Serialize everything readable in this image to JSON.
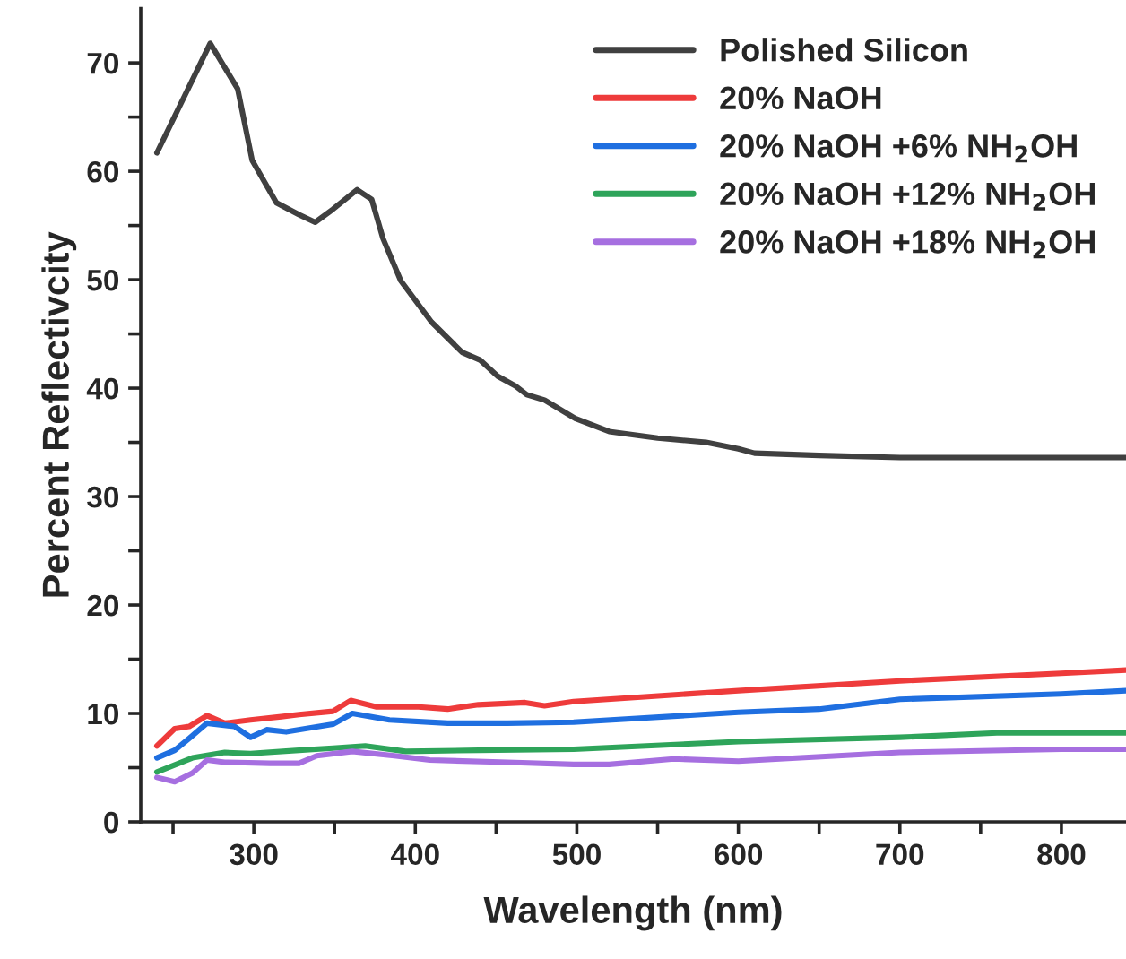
{
  "chart_data": {
    "type": "line",
    "xlabel": "Wavelength (nm)",
    "ylabel": "Percent Reflectivcity",
    "xlim": [
      230,
      840
    ],
    "ylim": [
      0,
      75
    ],
    "xticks": [
      {
        "value": 250,
        "label": null
      },
      300,
      {
        "value": 350,
        "label": null
      },
      400,
      {
        "value": 450,
        "label": null
      },
      500,
      {
        "value": 550,
        "label": null
      },
      600,
      {
        "value": 650,
        "label": null
      },
      700,
      {
        "value": 750,
        "label": null
      },
      800
    ],
    "yticks": [
      0,
      {
        "value": 5,
        "label": null
      },
      10,
      {
        "value": 15,
        "label": null
      },
      20,
      {
        "value": 25,
        "label": null
      },
      30,
      {
        "value": 35,
        "label": null
      },
      40,
      {
        "value": 45,
        "label": null
      },
      50,
      {
        "value": 55,
        "label": null
      },
      60,
      {
        "value": 65,
        "label": null
      },
      70
    ],
    "grid": false,
    "legend": "top right",
    "marker": "none",
    "line_style": "solid",
    "series": [
      {
        "name": "Polished Silicon",
        "color": "#404040",
        "x": [
          240,
          273,
          290,
          299,
          314,
          328,
          338,
          349,
          364,
          373,
          380,
          391,
          410,
          429,
          440,
          451,
          462,
          469,
          480,
          499,
          520,
          550,
          580,
          600,
          610,
          650,
          700,
          840
        ],
        "values": [
          61.7,
          71.8,
          67.6,
          61.0,
          57.1,
          56.0,
          55.3,
          56.5,
          58.3,
          57.4,
          53.8,
          49.9,
          46.1,
          43.3,
          42.6,
          41.1,
          40.2,
          39.4,
          38.9,
          37.2,
          36.0,
          35.4,
          35.0,
          34.4,
          34.0,
          33.8,
          33.6,
          33.6
        ]
      },
      {
        "name": "20% NaOH",
        "color": "#ee3b3b",
        "x": [
          240,
          251,
          260,
          271,
          282,
          298,
          317,
          328,
          349,
          360,
          376,
          402,
          420,
          439,
          468,
          480,
          498,
          600,
          700,
          800,
          840
        ],
        "values": [
          7.0,
          8.6,
          8.8,
          9.8,
          9.1,
          9.4,
          9.7,
          9.9,
          10.2,
          11.2,
          10.6,
          10.6,
          10.4,
          10.8,
          11.0,
          10.7,
          11.1,
          12.1,
          13.0,
          13.7,
          14.0
        ]
      },
      {
        "name": "20% NaOH +6% NH$_{2}$OH",
        "color": "#1f6fe0",
        "x": [
          240,
          251,
          260,
          271,
          288,
          298,
          308,
          320,
          349,
          361,
          384,
          420,
          457,
          498,
          600,
          650,
          700,
          800,
          840
        ],
        "values": [
          5.9,
          6.6,
          7.7,
          9.1,
          8.8,
          7.8,
          8.5,
          8.3,
          9.0,
          10.0,
          9.4,
          9.1,
          9.1,
          9.2,
          10.1,
          10.4,
          11.3,
          11.8,
          12.1
        ]
      },
      {
        "name": "20% NaOH +12% NH$_{2}$OH",
        "color": "#2ea45a",
        "x": [
          240,
          262,
          282,
          298,
          328,
          349,
          369,
          394,
          439,
          498,
          600,
          700,
          760,
          840
        ],
        "values": [
          4.6,
          5.9,
          6.4,
          6.3,
          6.6,
          6.8,
          7.0,
          6.5,
          6.6,
          6.7,
          7.4,
          7.8,
          8.2,
          8.2
        ]
      },
      {
        "name": "20% NaOH +18% NH$_{2}$OH",
        "color": "#a66fe0",
        "x": [
          240,
          251,
          262,
          271,
          282,
          310,
          328,
          339,
          361,
          387,
          409,
          457,
          498,
          520,
          560,
          600,
          700,
          800,
          840
        ],
        "values": [
          4.1,
          3.7,
          4.5,
          5.7,
          5.5,
          5.4,
          5.4,
          6.1,
          6.5,
          6.1,
          5.7,
          5.5,
          5.3,
          5.3,
          5.8,
          5.6,
          6.4,
          6.7,
          6.7
        ]
      }
    ]
  }
}
